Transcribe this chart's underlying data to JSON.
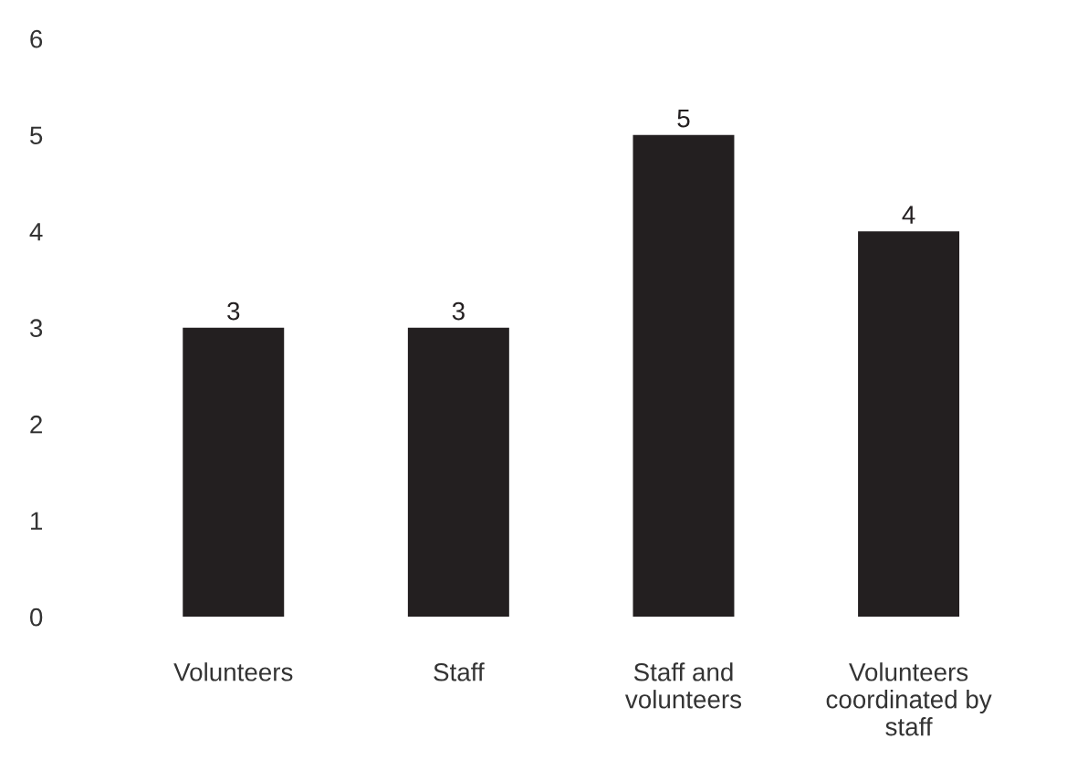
{
  "chart_data": {
    "type": "bar",
    "categories": [
      "Volunteers",
      "Staff",
      "Staff and\nvolunteers",
      "Volunteers\ncoordinated by\nstaff"
    ],
    "values": [
      3,
      3,
      5,
      4
    ],
    "color": "#231f20",
    "ylim": [
      0,
      6
    ],
    "yticks": [
      0,
      1,
      2,
      3,
      4,
      5,
      6
    ],
    "grid": false,
    "data_labels": true
  }
}
